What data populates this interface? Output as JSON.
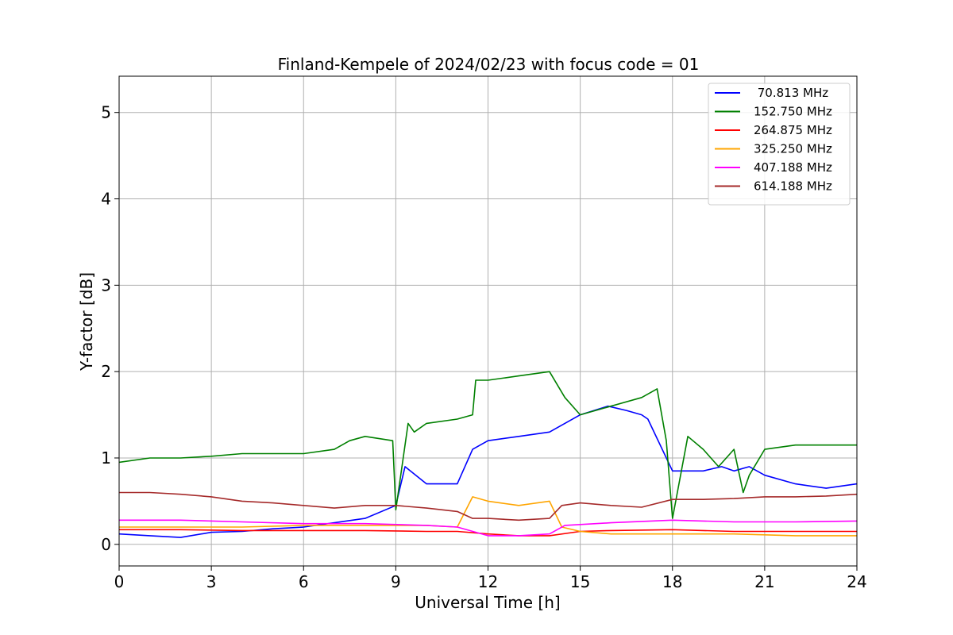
{
  "chart_data": {
    "type": "line",
    "title": "Finland-Kempele of 2024/02/23 with focus code = 01",
    "xlabel": "Universal Time [h]",
    "ylabel": "Y-factor [dB]",
    "xlim": [
      0,
      24
    ],
    "ylim": [
      -0.25,
      5.42
    ],
    "xticks": [
      0,
      3,
      6,
      9,
      12,
      15,
      18,
      21,
      24
    ],
    "yticks": [
      0,
      1,
      2,
      3,
      4,
      5
    ],
    "grid": true,
    "legend_position": "top-right",
    "series": [
      {
        "name": " 70.813 MHz",
        "color": "#0000ff",
        "x": [
          0,
          1,
          2,
          3,
          4,
          5,
          6,
          7,
          8,
          9,
          9.3,
          10,
          11,
          11.5,
          12,
          13,
          14,
          15,
          15.9,
          16.5,
          17,
          17.2,
          18,
          19,
          19.6,
          20,
          20.5,
          21,
          22,
          23,
          24
        ],
        "y": [
          0.12,
          0.1,
          0.08,
          0.14,
          0.15,
          0.18,
          0.2,
          0.25,
          0.3,
          0.45,
          0.9,
          0.7,
          0.7,
          1.1,
          1.2,
          1.25,
          1.3,
          1.5,
          1.6,
          1.55,
          1.5,
          1.45,
          0.85,
          0.85,
          0.9,
          0.85,
          0.9,
          0.8,
          0.7,
          0.65,
          0.7
        ]
      },
      {
        "name": "152.750 MHz",
        "color": "#008000",
        "x": [
          0,
          1,
          2,
          3,
          4,
          5,
          6,
          7,
          7.5,
          8,
          8.9,
          9,
          9.4,
          9.6,
          10,
          11,
          11.5,
          11.6,
          12,
          13,
          14,
          14.5,
          15,
          16,
          17,
          17.5,
          17.8,
          18,
          18.5,
          19,
          19.5,
          20,
          20.3,
          20.5,
          21,
          22,
          23,
          24
        ],
        "y": [
          0.95,
          1.0,
          1.0,
          1.02,
          1.05,
          1.05,
          1.05,
          1.1,
          1.2,
          1.25,
          1.2,
          0.4,
          1.4,
          1.3,
          1.4,
          1.45,
          1.5,
          1.9,
          1.9,
          1.95,
          2.0,
          1.7,
          1.5,
          1.6,
          1.7,
          1.8,
          1.2,
          0.3,
          1.25,
          1.1,
          0.9,
          1.1,
          0.6,
          0.8,
          1.1,
          1.15,
          1.15,
          1.15
        ]
      },
      {
        "name": "264.875 MHz",
        "color": "#ff0000",
        "x": [
          0,
          2,
          4,
          6,
          8,
          10,
          11,
          12,
          13,
          14,
          15,
          16,
          18,
          20,
          22,
          24
        ],
        "y": [
          0.17,
          0.17,
          0.16,
          0.16,
          0.16,
          0.15,
          0.15,
          0.12,
          0.1,
          0.1,
          0.15,
          0.16,
          0.17,
          0.15,
          0.15,
          0.15
        ]
      },
      {
        "name": "325.250 MHz",
        "color": "#ffa500",
        "x": [
          0,
          2,
          4,
          6,
          8,
          10,
          11,
          11.5,
          12,
          13,
          14,
          14.4,
          15,
          16,
          18,
          20,
          22,
          24
        ],
        "y": [
          0.2,
          0.2,
          0.2,
          0.22,
          0.22,
          0.22,
          0.2,
          0.55,
          0.5,
          0.45,
          0.5,
          0.2,
          0.15,
          0.12,
          0.12,
          0.12,
          0.1,
          0.1
        ]
      },
      {
        "name": "407.188 MHz",
        "color": "#ff00ff",
        "x": [
          0,
          2,
          4,
          6,
          8,
          10,
          11,
          12,
          13,
          14,
          14.5,
          16,
          18,
          20,
          22,
          24
        ],
        "y": [
          0.28,
          0.28,
          0.26,
          0.24,
          0.24,
          0.22,
          0.2,
          0.1,
          0.1,
          0.12,
          0.22,
          0.25,
          0.28,
          0.26,
          0.26,
          0.27
        ]
      },
      {
        "name": "614.188 MHz",
        "color": "#a52a2a",
        "x": [
          0,
          1,
          2,
          3,
          4,
          5,
          6,
          7,
          8,
          9,
          10,
          11,
          11.5,
          12,
          13,
          14,
          14.4,
          15,
          16,
          17,
          18,
          19,
          20,
          21,
          22,
          23,
          24
        ],
        "y": [
          0.6,
          0.6,
          0.58,
          0.55,
          0.5,
          0.48,
          0.45,
          0.42,
          0.45,
          0.45,
          0.42,
          0.38,
          0.3,
          0.3,
          0.28,
          0.3,
          0.45,
          0.48,
          0.45,
          0.43,
          0.52,
          0.52,
          0.53,
          0.55,
          0.55,
          0.56,
          0.58
        ]
      }
    ]
  }
}
